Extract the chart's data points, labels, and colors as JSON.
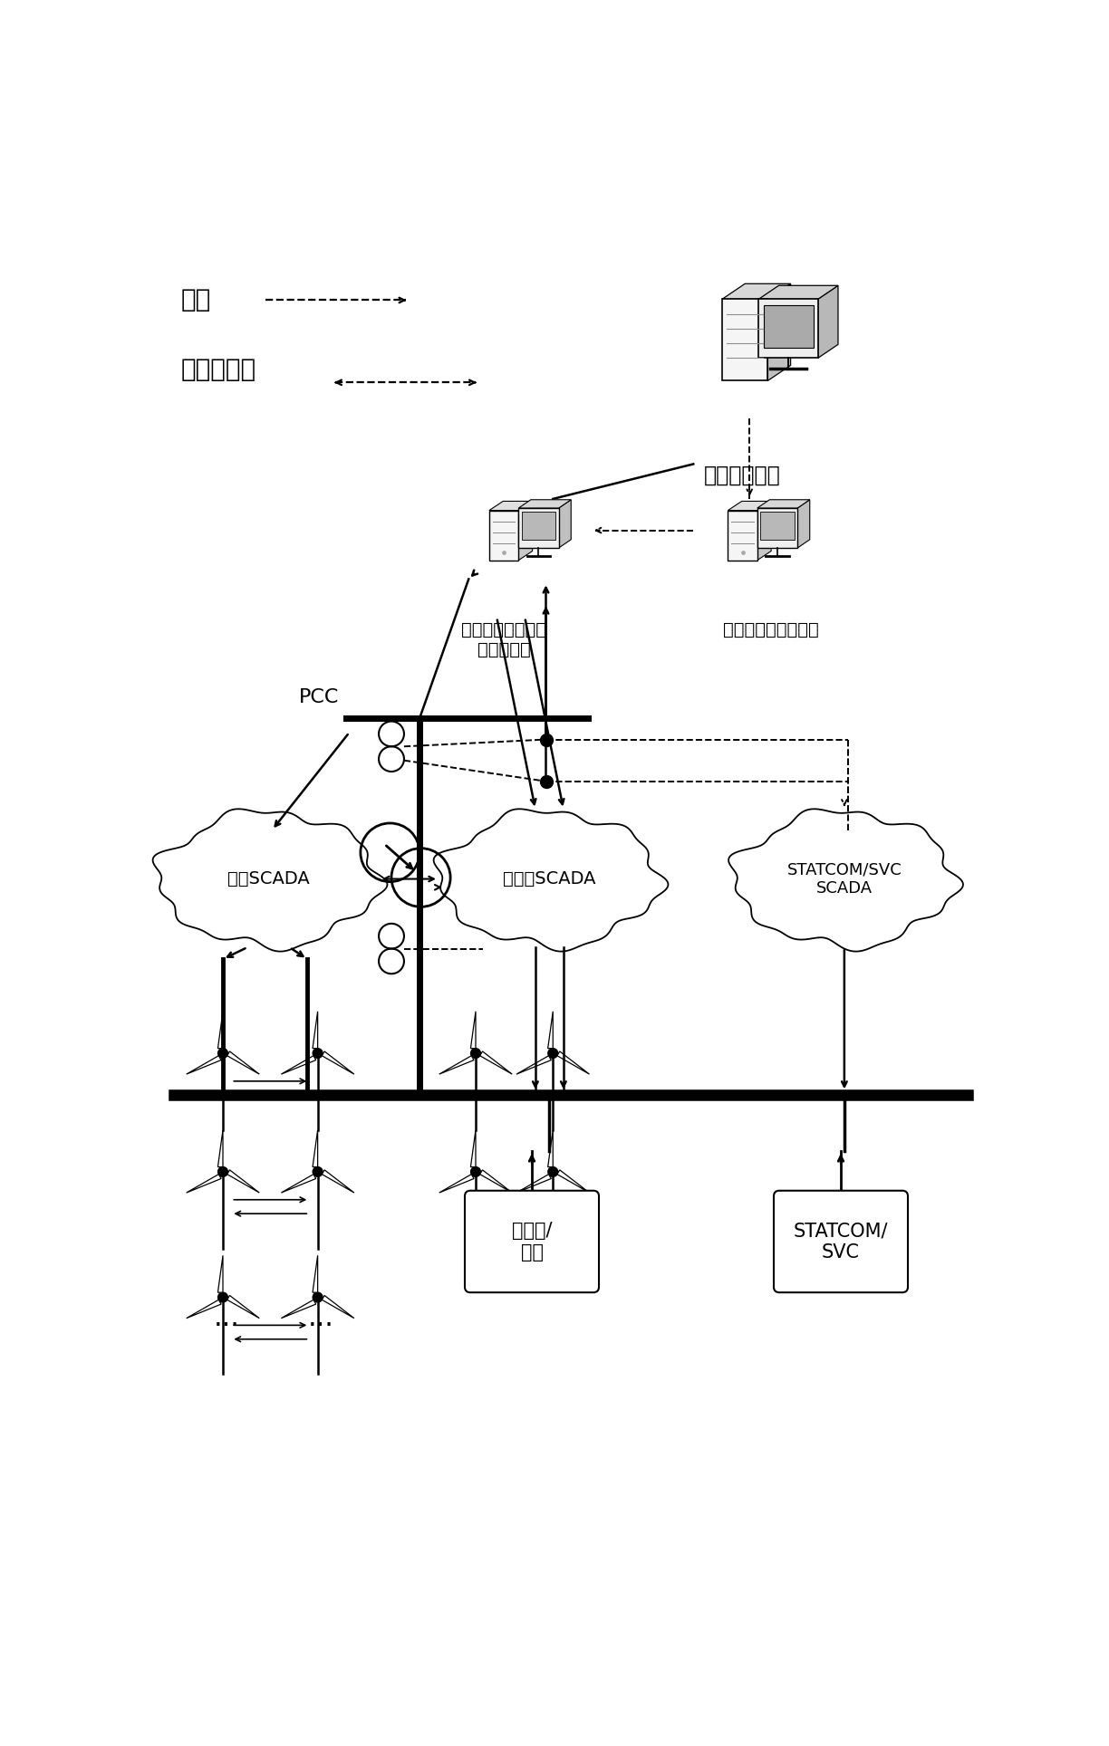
{
  "bg_color": "#ffffff",
  "legend_data": "数据",
  "legend_data_cmd": "数据和指令",
  "label_grid": "电网调度中心",
  "label_control": "风电场综合无功电\n压控制系统",
  "label_forecast": "风电场功率预测系统",
  "label_fan_scada": "风机SCADA",
  "label_sub_scada": "变电站SCADA",
  "label_statcom_scada": "STATCOM/SVC\nSCADA",
  "label_capacitor": "电容器/\n抗器",
  "label_statcom": "STATCOM/\nSVC",
  "label_pcc": "PCC",
  "figsize": [
    12.24,
    19.28
  ],
  "dpi": 100
}
